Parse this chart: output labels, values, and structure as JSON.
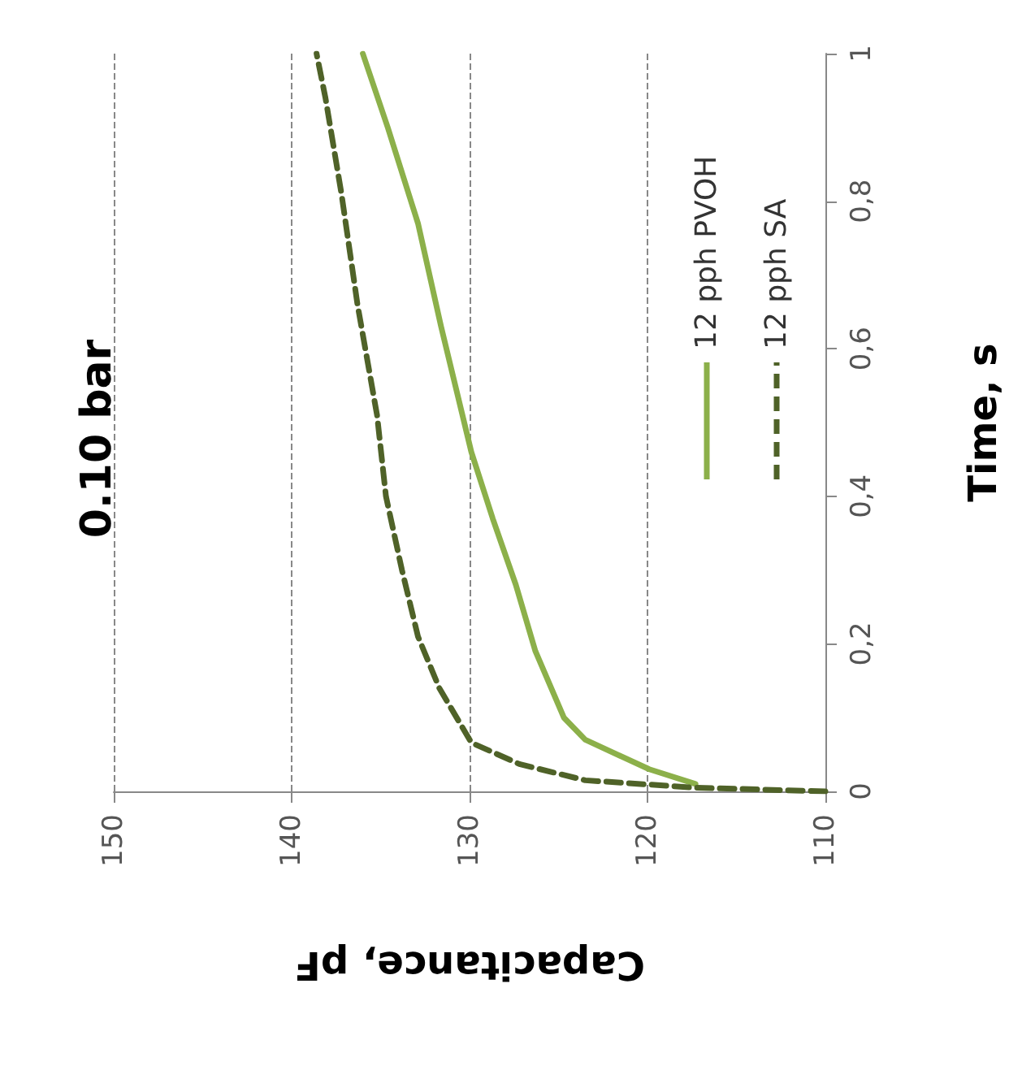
{
  "chart_data": {
    "type": "line",
    "title": "0.10 bar",
    "xlabel": "Capacitance, pF",
    "ylabel": "Time, s",
    "xlim": [
      150,
      110
    ],
    "xticks": [
      150,
      140,
      130,
      120,
      110
    ],
    "ylim": [
      0,
      1
    ],
    "yticks": [
      0,
      {
        "value": 0.2,
        "label": "0,2"
      },
      {
        "value": 0.4,
        "label": "0,4"
      },
      {
        "value": 0.6,
        "label": "0,6"
      },
      {
        "value": 0.8,
        "label": "0,8"
      },
      1
    ],
    "grid": "x",
    "legend": "right",
    "marker": "none",
    "series": [
      {
        "name": "12 pph PVOH",
        "color": "#8cb04a",
        "line_style": "solid",
        "x": [
          117.3,
          119.9,
          123.5,
          124.7,
          126.3,
          127.4,
          128.7,
          129.9,
          130.2,
          131.6,
          132.9,
          134.6,
          136.0
        ],
        "values": [
          0.01,
          0.03,
          0.07,
          0.1,
          0.19,
          0.28,
          0.37,
          0.46,
          0.49,
          0.63,
          0.77,
          0.9,
          1
        ]
      },
      {
        "name": "12 pph SA",
        "color": "#4f6228",
        "line_style": "dashed",
        "x": [
          110,
          117.3,
          123.5,
          127.2,
          129.9,
          131.7,
          132.9,
          133.8,
          134.7,
          135.2,
          136.3,
          137.2,
          138.1,
          138.6
        ],
        "values": [
          0,
          0.005,
          0.015,
          0.037,
          0.066,
          0.14,
          0.21,
          0.3,
          0.4,
          0.51,
          0.66,
          0.81,
          0.94,
          1
        ]
      }
    ]
  }
}
